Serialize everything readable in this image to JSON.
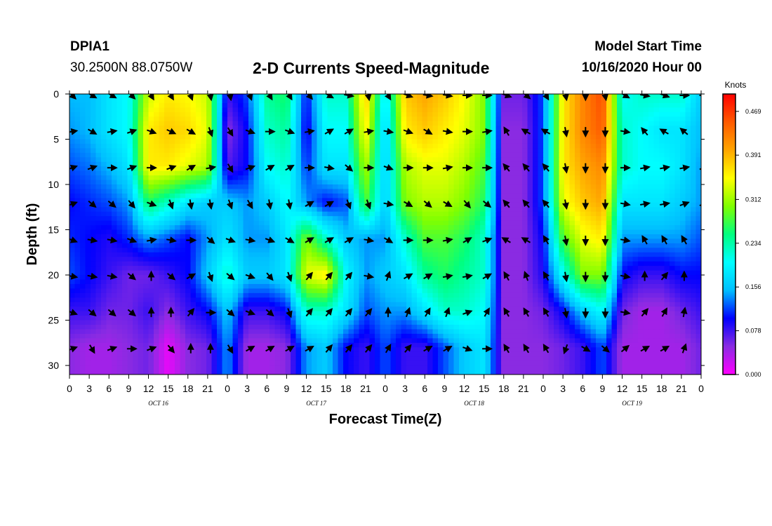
{
  "header": {
    "station": "DPIA1",
    "coordinates": "30.2500N 88.0750W",
    "title": "2-D Currents Speed-Magnitude",
    "model_start_label": "Model Start Time",
    "model_start_value": "10/16/2020 Hour 00"
  },
  "chart_data": {
    "type": "heatmap",
    "title": "2-D Currents Speed-Magnitude",
    "xlabel": "Forecast Time(Z)",
    "ylabel": "Depth (ft)",
    "x_tick_labels": [
      "0",
      "3",
      "6",
      "9",
      "12",
      "15",
      "18",
      "21",
      "0",
      "3",
      "6",
      "9",
      "12",
      "15",
      "18",
      "21",
      "0",
      "3",
      "6",
      "9",
      "12",
      "15",
      "18",
      "21",
      "0",
      "3",
      "6",
      "9",
      "12",
      "15",
      "18",
      "21",
      "0"
    ],
    "day_labels": [
      "OCT 16",
      "OCT 17",
      "OCT 18",
      "OCT 19"
    ],
    "y_ticks": [
      0,
      5,
      10,
      15,
      20,
      25,
      30
    ],
    "ylim": [
      0,
      31
    ],
    "y_inverted": true,
    "xlim_hours": [
      0,
      96
    ],
    "colorbar": {
      "title": "Knots",
      "ticks": [
        "0.469",
        "0.391",
        "0.312",
        "0.234",
        "0.156",
        "0.078",
        "0.000"
      ],
      "range": [
        0,
        0.5
      ],
      "colors": [
        "#ff00ff",
        "#8a2be2",
        "#0000ff",
        "#00bfff",
        "#00ffff",
        "#00ff7f",
        "#7fff00",
        "#ffff00",
        "#ffa500",
        "#ff5a00",
        "#ff0000"
      ]
    },
    "depths": [
      0,
      4,
      8,
      12,
      16,
      20,
      24,
      28
    ],
    "hours": [
      0,
      3,
      6,
      9,
      12,
      15,
      18,
      21,
      24,
      27,
      30,
      33,
      36,
      39,
      42,
      45,
      48,
      51,
      54,
      57,
      60,
      63,
      66,
      69,
      72,
      75,
      78,
      81,
      84,
      87,
      90,
      93,
      96
    ],
    "speed_knots": [
      [
        0.15,
        0.15,
        0.18,
        0.2,
        0.33,
        0.36,
        0.35,
        0.33,
        0.08,
        0.12,
        0.24,
        0.26,
        0.1,
        0.22,
        0.22,
        0.38,
        0.18,
        0.38,
        0.4,
        0.38,
        0.35,
        0.3,
        0.06,
        0.06,
        0.12,
        0.36,
        0.42,
        0.46,
        0.2,
        0.22,
        0.22,
        0.22,
        0.16
      ],
      [
        0.14,
        0.15,
        0.18,
        0.2,
        0.36,
        0.38,
        0.37,
        0.34,
        0.05,
        0.1,
        0.22,
        0.24,
        0.09,
        0.2,
        0.2,
        0.36,
        0.16,
        0.36,
        0.38,
        0.36,
        0.34,
        0.3,
        0.05,
        0.05,
        0.12,
        0.36,
        0.42,
        0.45,
        0.22,
        0.2,
        0.18,
        0.18,
        0.15
      ],
      [
        0.12,
        0.13,
        0.15,
        0.18,
        0.36,
        0.36,
        0.34,
        0.32,
        0.07,
        0.1,
        0.2,
        0.22,
        0.11,
        0.18,
        0.18,
        0.32,
        0.16,
        0.32,
        0.34,
        0.34,
        0.32,
        0.28,
        0.05,
        0.05,
        0.12,
        0.36,
        0.4,
        0.42,
        0.22,
        0.2,
        0.2,
        0.18,
        0.14
      ],
      [
        0.1,
        0.11,
        0.12,
        0.14,
        0.26,
        0.22,
        0.18,
        0.16,
        0.16,
        0.14,
        0.16,
        0.2,
        0.14,
        0.1,
        0.12,
        0.28,
        0.16,
        0.3,
        0.32,
        0.32,
        0.3,
        0.26,
        0.05,
        0.05,
        0.12,
        0.34,
        0.38,
        0.4,
        0.18,
        0.18,
        0.18,
        0.16,
        0.14
      ],
      [
        0.11,
        0.1,
        0.09,
        0.11,
        0.14,
        0.12,
        0.1,
        0.14,
        0.18,
        0.14,
        0.14,
        0.18,
        0.3,
        0.22,
        0.16,
        0.14,
        0.14,
        0.22,
        0.28,
        0.28,
        0.26,
        0.22,
        0.05,
        0.05,
        0.1,
        0.28,
        0.34,
        0.36,
        0.14,
        0.14,
        0.14,
        0.14,
        0.12
      ],
      [
        0.12,
        0.1,
        0.08,
        0.06,
        0.06,
        0.08,
        0.1,
        0.16,
        0.22,
        0.16,
        0.16,
        0.18,
        0.34,
        0.36,
        0.2,
        0.14,
        0.16,
        0.18,
        0.24,
        0.26,
        0.24,
        0.22,
        0.05,
        0.05,
        0.09,
        0.2,
        0.3,
        0.3,
        0.1,
        0.08,
        0.08,
        0.1,
        0.1
      ],
      [
        0.08,
        0.08,
        0.06,
        0.06,
        0.08,
        0.05,
        0.08,
        0.1,
        0.16,
        0.08,
        0.08,
        0.1,
        0.22,
        0.22,
        0.18,
        0.12,
        0.14,
        0.14,
        0.18,
        0.22,
        0.22,
        0.2,
        0.05,
        0.05,
        0.06,
        0.1,
        0.16,
        0.2,
        0.06,
        0.04,
        0.04,
        0.06,
        0.08
      ],
      [
        0.05,
        0.04,
        0.04,
        0.05,
        0.06,
        0.01,
        0.05,
        0.06,
        0.14,
        0.04,
        0.04,
        0.05,
        0.14,
        0.16,
        0.1,
        0.08,
        0.12,
        0.08,
        0.08,
        0.12,
        0.16,
        0.18,
        0.05,
        0.05,
        0.05,
        0.06,
        0.08,
        0.12,
        0.04,
        0.04,
        0.04,
        0.04,
        0.06
      ]
    ],
    "direction_deg": [
      [
        135,
        120,
        120,
        135,
        150,
        150,
        160,
        170,
        170,
        160,
        150,
        150,
        140,
        120,
        100,
        170,
        150,
        110,
        100,
        100,
        90,
        90,
        110,
        130,
        150,
        170,
        180,
        170,
        120,
        100,
        110,
        90,
        90
      ],
      [
        80,
        120,
        80,
        70,
        110,
        115,
        120,
        160,
        150,
        110,
        90,
        110,
        80,
        60,
        60,
        80,
        100,
        110,
        120,
        100,
        90,
        80,
        330,
        300,
        300,
        170,
        180,
        180,
        100,
        320,
        300,
        310,
        330
      ],
      [
        70,
        70,
        90,
        70,
        90,
        70,
        60,
        80,
        150,
        70,
        60,
        60,
        90,
        100,
        130,
        90,
        110,
        90,
        90,
        80,
        90,
        90,
        320,
        320,
        320,
        170,
        180,
        180,
        90,
        80,
        80,
        80,
        70
      ],
      [
        70,
        130,
        130,
        140,
        110,
        160,
        170,
        170,
        160,
        150,
        170,
        170,
        60,
        60,
        160,
        160,
        100,
        120,
        130,
        120,
        140,
        130,
        320,
        320,
        320,
        170,
        180,
        180,
        100,
        80,
        80,
        70,
        70
      ],
      [
        110,
        100,
        100,
        110,
        80,
        100,
        90,
        130,
        110,
        100,
        110,
        120,
        60,
        60,
        60,
        100,
        120,
        90,
        90,
        80,
        60,
        70,
        300,
        300,
        330,
        170,
        180,
        180,
        100,
        330,
        330,
        330,
        330
      ],
      [
        100,
        100,
        100,
        130,
        0,
        130,
        60,
        160,
        130,
        110,
        140,
        160,
        40,
        40,
        40,
        100,
        20,
        60,
        60,
        80,
        80,
        60,
        330,
        340,
        330,
        170,
        180,
        180,
        100,
        0,
        40,
        0,
        0
      ],
      [
        110,
        130,
        130,
        130,
        0,
        0,
        40,
        90,
        130,
        110,
        130,
        160,
        40,
        40,
        40,
        40,
        0,
        20,
        30,
        20,
        70,
        30,
        330,
        330,
        330,
        170,
        180,
        180,
        100,
        40,
        30,
        10,
        0
      ],
      [
        70,
        150,
        70,
        90,
        70,
        140,
        0,
        0,
        150,
        60,
        60,
        60,
        60,
        40,
        40,
        40,
        30,
        40,
        60,
        60,
        110,
        90,
        330,
        330,
        330,
        200,
        120,
        130,
        50,
        60,
        60,
        20,
        30
      ]
    ]
  }
}
